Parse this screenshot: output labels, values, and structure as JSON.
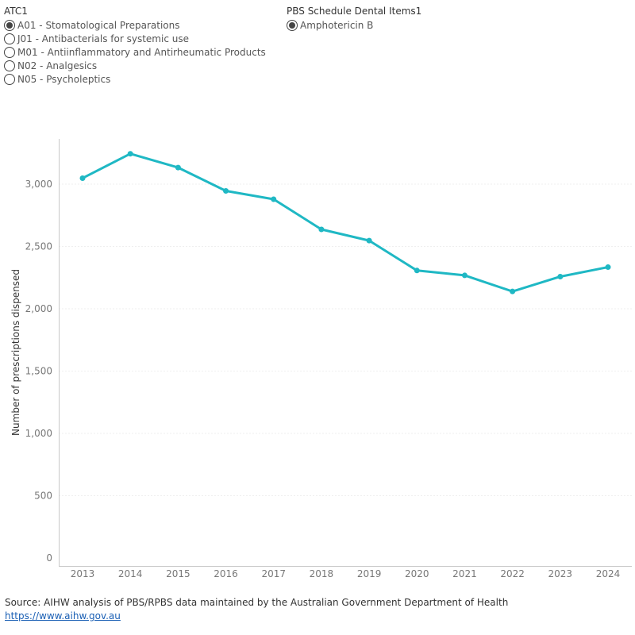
{
  "filters": {
    "atc": {
      "title": "ATC1",
      "options": [
        {
          "label": "A01 - Stomatological Preparations",
          "selected": true
        },
        {
          "label": "J01 - Antibacterials for systemic use",
          "selected": false
        },
        {
          "label": "M01 - Antiinflammatory and Antirheumatic Products",
          "selected": false
        },
        {
          "label": "N02 - Analgesics",
          "selected": false
        },
        {
          "label": "N05 - Psycholeptics",
          "selected": false
        }
      ]
    },
    "pbs": {
      "title": "PBS Schedule Dental Items1",
      "options": [
        {
          "label": "Amphotericin B",
          "selected": true
        }
      ]
    }
  },
  "chart_data": {
    "type": "line",
    "title": "",
    "xlabel": "",
    "ylabel": "Number of prescriptions dispensed",
    "x": [
      "2013",
      "2014",
      "2015",
      "2016",
      "2017",
      "2018",
      "2019",
      "2020",
      "2021",
      "2022",
      "2023",
      "2024"
    ],
    "series": [
      {
        "values": [
          3048,
          3244,
          3133,
          2946,
          2879,
          2637,
          2547,
          2307,
          2268,
          2139,
          2258,
          2334
        ]
      }
    ],
    "ylim": [
      0,
      3400
    ],
    "yticks": [
      0,
      500,
      1000,
      1500,
      2000,
      2500,
      3000
    ],
    "ytick_labels": [
      "0",
      "500",
      "1,000",
      "1,500",
      "2,000",
      "2,500",
      "3,000"
    ],
    "grid": true,
    "line_color": "#1fb8c4"
  },
  "footer": {
    "source": "Source: AIHW analysis of PBS/RPBS data maintained by the Australian Government Department of Health",
    "link": "https://www.aihw.gov.au"
  }
}
